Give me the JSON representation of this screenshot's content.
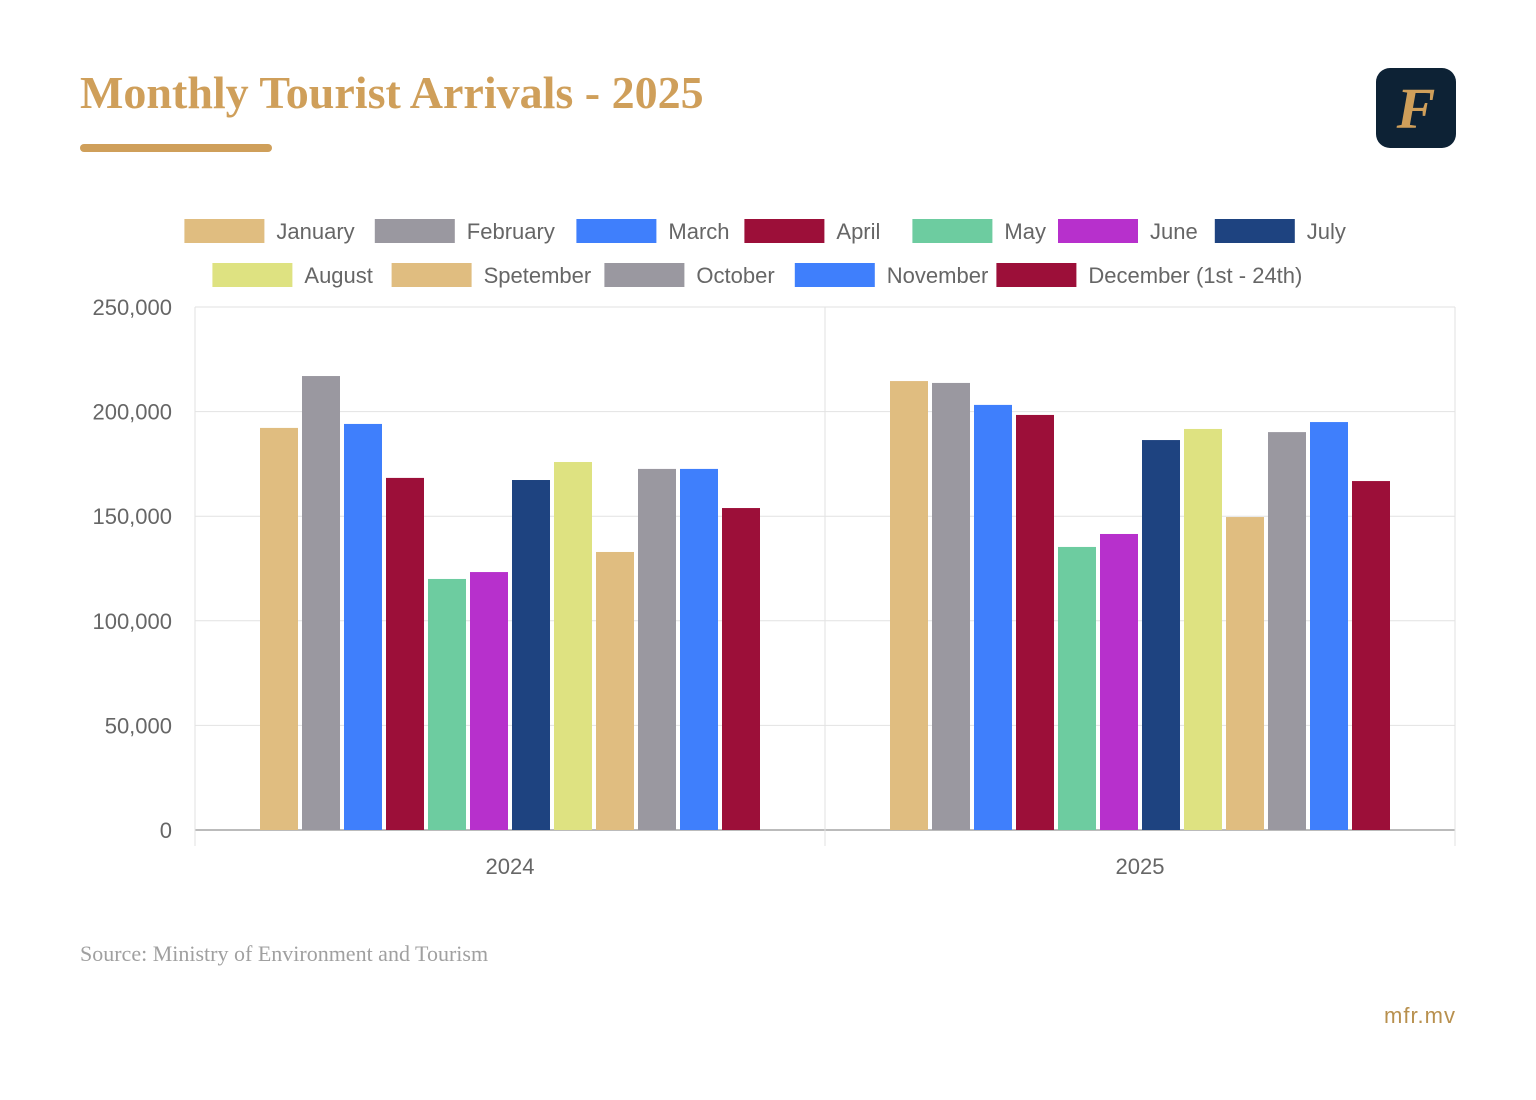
{
  "header": {
    "title": "Monthly Tourist Arrivals - 2025",
    "logo_letter": "F"
  },
  "footer": {
    "source": "Source: Ministry of Environment and Tourism",
    "site": "mfr.mv"
  },
  "chart_data": {
    "type": "bar",
    "title": "Monthly Tourist Arrivals - 2025",
    "xlabel": "",
    "ylabel": "",
    "categories": [
      "2024",
      "2025"
    ],
    "ylim": [
      0,
      250000
    ],
    "yticks": [
      0,
      50000,
      100000,
      150000,
      200000,
      250000
    ],
    "ytick_labels": [
      "0",
      "50,000",
      "100,000",
      "150,000",
      "200,000",
      "250,000"
    ],
    "grid": true,
    "legend_position": "top",
    "series": [
      {
        "name": "January",
        "color": "#e0bd80",
        "values": [
          192200,
          214600
        ]
      },
      {
        "name": "February",
        "color": "#9a98a0",
        "values": [
          217000,
          213700
        ]
      },
      {
        "name": "March",
        "color": "#3f7ffc",
        "values": [
          194100,
          203200
        ]
      },
      {
        "name": "April",
        "color": "#9c0f39",
        "values": [
          168300,
          198400
        ]
      },
      {
        "name": "May",
        "color": "#6dcca0",
        "values": [
          120000,
          135300
        ]
      },
      {
        "name": "June",
        "color": "#b730cc",
        "values": [
          123300,
          141500
        ]
      },
      {
        "name": "July",
        "color": "#1e4380",
        "values": [
          167300,
          186400
        ]
      },
      {
        "name": "August",
        "color": "#dee281",
        "values": [
          175900,
          191700
        ]
      },
      {
        "name": "Spetember",
        "color": "#e0bd80",
        "values": [
          132900,
          149600
        ]
      },
      {
        "name": "October",
        "color": "#9a98a0",
        "values": [
          172600,
          190200
        ]
      },
      {
        "name": "November",
        "color": "#3f7ffc",
        "values": [
          172600,
          195000
        ]
      },
      {
        "name": "December (1st - 24th)",
        "color": "#9c0f39",
        "values": [
          153900,
          166800
        ]
      }
    ]
  }
}
